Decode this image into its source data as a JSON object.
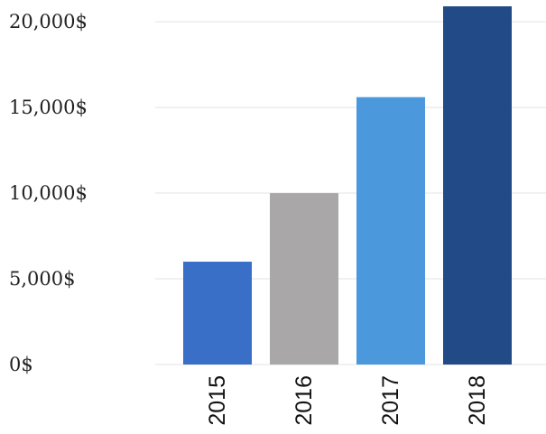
{
  "chart_data": {
    "type": "bar",
    "categories": [
      "2015",
      "2016",
      "2017",
      "2018"
    ],
    "values": [
      6000,
      10000,
      15600,
      20900
    ],
    "colors": [
      "#3a6fc7",
      "#a9a7a8",
      "#4b98dc",
      "#214a86"
    ],
    "title": "",
    "xlabel": "",
    "ylabel": "",
    "ylim": [
      0,
      20900
    ],
    "yticks": [
      0,
      5000,
      10000,
      15000,
      20000
    ],
    "ytick_labels": [
      "0$",
      "5,000$",
      "10,000$",
      "15,000$",
      "20,000$"
    ],
    "grid": true,
    "legend": "none"
  }
}
